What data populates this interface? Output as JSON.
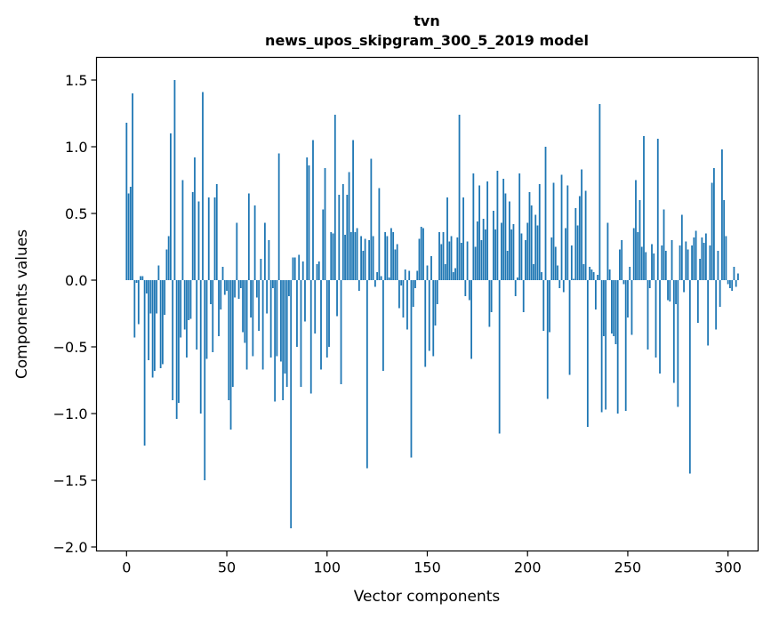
{
  "chart_data": {
    "type": "bar",
    "title": "tvn",
    "subtitle": "news_upos_skipgram_300_5_2019 model",
    "xlabel": "Vector components",
    "ylabel": "Components values",
    "xlim": [
      -15,
      315
    ],
    "ylim": [
      -2.03,
      1.67
    ],
    "xticks": [
      0,
      50,
      100,
      150,
      200,
      250,
      300
    ],
    "xtick_labels": [
      "0",
      "50",
      "100",
      "150",
      "200",
      "250",
      "300"
    ],
    "yticks": [
      -2.0,
      -1.5,
      -1.0,
      -0.5,
      0.0,
      0.5,
      1.0,
      1.5
    ],
    "ytick_labels": [
      "−2.0",
      "−1.5",
      "−1.0",
      "−0.5",
      "0.0",
      "0.5",
      "1.0",
      "1.5"
    ],
    "grid": false,
    "bar_color": "#1f77b4",
    "x_start": 0,
    "values": [
      1.18,
      0.65,
      0.7,
      1.4,
      -0.43,
      -0.02,
      -0.33,
      0.03,
      0.03,
      -1.24,
      -0.1,
      -0.6,
      -0.25,
      -0.73,
      -0.68,
      -0.25,
      0.11,
      -0.66,
      -0.63,
      -0.26,
      0.23,
      0.33,
      1.1,
      -0.9,
      1.5,
      -1.04,
      -0.92,
      -0.43,
      0.75,
      -0.37,
      -0.58,
      -0.3,
      -0.29,
      0.66,
      0.92,
      -0.52,
      0.59,
      -1.0,
      1.41,
      -1.5,
      -0.59,
      0.62,
      -0.18,
      -0.54,
      0.62,
      0.72,
      -0.42,
      -0.22,
      0.1,
      -0.11,
      -0.08,
      -0.9,
      -1.12,
      -0.8,
      -0.13,
      0.43,
      -0.14,
      -0.06,
      -0.39,
      -0.47,
      -0.67,
      0.65,
      -0.28,
      -0.57,
      0.56,
      -0.13,
      -0.38,
      0.16,
      -0.67,
      0.43,
      -0.25,
      0.3,
      -0.58,
      -0.06,
      -0.91,
      -0.57,
      0.95,
      -0.61,
      -0.9,
      -0.7,
      -0.8,
      -0.12,
      -1.86,
      0.17,
      0.17,
      -0.5,
      0.19,
      -0.8,
      0.14,
      -0.31,
      0.92,
      0.86,
      -0.85,
      1.05,
      -0.4,
      0.12,
      0.14,
      -0.67,
      0.53,
      0.84,
      -0.58,
      -0.5,
      0.36,
      0.35,
      1.24,
      -0.27,
      0.64,
      -0.78,
      0.72,
      0.34,
      0.64,
      0.81,
      0.36,
      1.05,
      0.36,
      0.39,
      -0.08,
      0.33,
      0.22,
      0.31,
      -1.41,
      0.3,
      0.91,
      0.33,
      -0.05,
      0.06,
      0.69,
      0.03,
      -0.68,
      0.36,
      0.33,
      0.02,
      0.39,
      0.36,
      0.23,
      0.27,
      -0.21,
      -0.04,
      -0.28,
      0.08,
      -0.37,
      0.07,
      -1.33,
      -0.2,
      -0.06,
      0.07,
      0.31,
      0.4,
      0.39,
      -0.65,
      0.11,
      -0.53,
      0.18,
      -0.57,
      -0.34,
      -0.18,
      0.36,
      0.27,
      0.36,
      0.12,
      0.62,
      0.29,
      0.33,
      0.06,
      0.09,
      0.32,
      1.24,
      0.28,
      0.62,
      -0.12,
      0.29,
      -0.15,
      -0.59,
      0.8,
      0.25,
      0.44,
      0.71,
      0.3,
      0.46,
      0.38,
      0.74,
      -0.35,
      -0.24,
      0.52,
      0.38,
      0.82,
      -1.15,
      0.43,
      0.76,
      0.65,
      0.22,
      0.59,
      0.38,
      0.42,
      -0.12,
      0.02,
      0.8,
      0.35,
      -0.24,
      0.3,
      0.43,
      0.66,
      0.56,
      0.12,
      0.49,
      0.41,
      0.72,
      0.06,
      -0.38,
      1.0,
      -0.89,
      -0.39,
      0.32,
      0.73,
      0.25,
      0.11,
      -0.06,
      0.79,
      -0.09,
      0.39,
      0.71,
      -0.71,
      0.26,
      0.01,
      0.54,
      0.41,
      0.63,
      0.83,
      0.12,
      0.67,
      -1.1,
      0.1,
      0.08,
      0.06,
      -0.22,
      0.04,
      1.32,
      -0.99,
      -0.42,
      -0.97,
      0.43,
      0.08,
      -0.4,
      -0.42,
      -0.48,
      -1.0,
      0.23,
      0.3,
      -0.03,
      -0.98,
      -0.28,
      0.1,
      -0.41,
      0.39,
      0.75,
      0.36,
      0.6,
      0.25,
      1.08,
      0.21,
      -0.52,
      -0.06,
      0.27,
      0.2,
      -0.58,
      1.06,
      -0.7,
      0.26,
      0.53,
      0.22,
      -0.15,
      -0.16,
      0.3,
      -0.77,
      -0.18,
      -0.95,
      0.26,
      0.49,
      -0.09,
      0.29,
      0.23,
      -1.45,
      0.26,
      0.32,
      0.37,
      -0.32,
      0.16,
      0.32,
      0.28,
      0.35,
      -0.49,
      0.26,
      0.73,
      0.84,
      -0.37,
      0.22,
      -0.2,
      0.98,
      0.6,
      0.33,
      -0.03,
      -0.06,
      -0.08,
      0.1,
      -0.05,
      0.05
    ]
  }
}
